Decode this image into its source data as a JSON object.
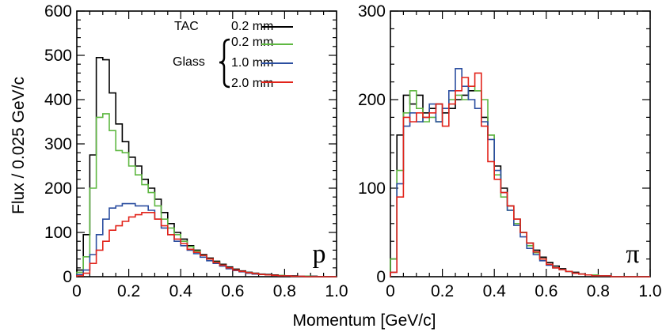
{
  "chart_data": [
    {
      "type": "line",
      "step": true,
      "panel_label": "p",
      "x_edges": [
        0,
        0.025,
        0.05,
        0.075,
        0.1,
        0.125,
        0.15,
        0.175,
        0.2,
        0.225,
        0.25,
        0.275,
        0.3,
        0.325,
        0.35,
        0.375,
        0.4,
        0.425,
        0.45,
        0.475,
        0.5,
        0.525,
        0.55,
        0.575,
        0.6,
        0.625,
        0.65,
        0.675,
        0.7,
        0.725,
        0.75,
        0.775,
        0.8,
        0.825,
        0.85,
        0.875,
        0.9,
        0.925,
        0.95,
        0.975,
        1.0
      ],
      "xlim": [
        0,
        1.0
      ],
      "ylim": [
        0,
        600
      ],
      "xticks": [
        "0",
        "0.2",
        "0.4",
        "0.6",
        "0.8",
        "1.0"
      ],
      "yticks": [
        "0",
        "100",
        "200",
        "300",
        "400",
        "500",
        "600"
      ],
      "ylabel": "Flux / 0.025 GeV/c",
      "series": [
        {
          "name": "TAC 0.2 mm",
          "color": "#000000",
          "values": [
            15,
            95,
            275,
            495,
            490,
            415,
            345,
            305,
            270,
            250,
            220,
            200,
            175,
            145,
            120,
            100,
            85,
            70,
            60,
            50,
            42,
            35,
            28,
            22,
            17,
            13,
            10,
            8,
            6,
            5,
            4,
            3,
            2,
            2,
            1,
            1,
            1,
            0,
            0,
            0
          ]
        },
        {
          "name": "Glass 0.2 mm",
          "color": "#5fb842",
          "values": [
            10,
            45,
            200,
            360,
            368,
            330,
            285,
            280,
            250,
            230,
            208,
            190,
            160,
            130,
            110,
            95,
            80,
            68,
            58,
            48,
            40,
            33,
            26,
            20,
            15,
            12,
            9,
            7,
            5,
            4,
            3,
            3,
            2,
            1,
            1,
            1,
            0,
            0,
            0,
            0
          ]
        },
        {
          "name": "Glass 1.0 mm",
          "color": "#2b4ea0",
          "values": [
            5,
            15,
            50,
            95,
            130,
            155,
            160,
            165,
            165,
            160,
            160,
            150,
            130,
            110,
            95,
            80,
            70,
            60,
            52,
            44,
            36,
            30,
            24,
            18,
            14,
            11,
            8,
            6,
            5,
            4,
            3,
            2,
            2,
            1,
            1,
            0,
            0,
            0,
            0,
            0
          ]
        },
        {
          "name": "Glass 2.0 mm",
          "color": "#e2231a",
          "values": [
            2,
            8,
            30,
            60,
            80,
            105,
            115,
            125,
            135,
            140,
            145,
            145,
            130,
            115,
            95,
            85,
            75,
            62,
            55,
            48,
            40,
            32,
            26,
            20,
            15,
            12,
            9,
            7,
            5,
            4,
            3,
            2,
            2,
            1,
            1,
            0,
            0,
            0,
            0,
            0
          ]
        }
      ]
    },
    {
      "type": "line",
      "step": true,
      "panel_label": "π",
      "x_edges": [
        0,
        0.025,
        0.05,
        0.075,
        0.1,
        0.125,
        0.15,
        0.175,
        0.2,
        0.225,
        0.25,
        0.275,
        0.3,
        0.325,
        0.35,
        0.375,
        0.4,
        0.425,
        0.45,
        0.475,
        0.5,
        0.525,
        0.55,
        0.575,
        0.6,
        0.625,
        0.65,
        0.675,
        0.7,
        0.725,
        0.75,
        0.775,
        0.8,
        0.825,
        0.85,
        0.875,
        0.9,
        0.925,
        0.95,
        0.975,
        1.0
      ],
      "xlim": [
        0,
        1.0
      ],
      "ylim": [
        0,
        300
      ],
      "xticks": [
        "0",
        "0.2",
        "0.4",
        "0.6",
        "0.8",
        "1.0"
      ],
      "yticks": [
        "0",
        "100",
        "200",
        "300"
      ],
      "series": [
        {
          "name": "TAC 0.2 mm",
          "color": "#000000",
          "values": [
            20,
            160,
            205,
            195,
            205,
            185,
            190,
            195,
            185,
            190,
            200,
            205,
            210,
            210,
            180,
            160,
            125,
            100,
            80,
            65,
            50,
            38,
            30,
            22,
            16,
            12,
            9,
            6,
            5,
            3,
            2,
            2,
            1,
            1,
            0,
            0,
            0,
            0,
            0,
            0
          ]
        },
        {
          "name": "Glass 0.2 mm",
          "color": "#5fb842",
          "values": [
            20,
            120,
            185,
            210,
            190,
            175,
            180,
            175,
            190,
            200,
            205,
            200,
            215,
            210,
            200,
            160,
            115,
            90,
            75,
            60,
            50,
            35,
            27,
            20,
            14,
            10,
            8,
            6,
            4,
            3,
            2,
            2,
            1,
            1,
            0,
            0,
            0,
            0,
            0,
            0
          ]
        },
        {
          "name": "Glass 1.0 mm",
          "color": "#2b4ea0",
          "values": [
            5,
            105,
            170,
            185,
            175,
            180,
            195,
            175,
            190,
            210,
            235,
            215,
            200,
            190,
            175,
            155,
            120,
            95,
            75,
            58,
            45,
            32,
            25,
            18,
            13,
            10,
            8,
            6,
            4,
            3,
            2,
            1,
            1,
            1,
            0,
            0,
            0,
            0,
            0,
            0
          ]
        },
        {
          "name": "Glass 2.0 mm",
          "color": "#e2231a",
          "values": [
            5,
            90,
            180,
            175,
            185,
            180,
            185,
            195,
            170,
            195,
            210,
            225,
            215,
            230,
            170,
            130,
            110,
            95,
            80,
            65,
            50,
            38,
            28,
            20,
            14,
            10,
            8,
            6,
            4,
            3,
            2,
            1,
            1,
            1,
            0,
            0,
            0,
            0,
            0,
            0
          ]
        }
      ]
    }
  ],
  "xlabel": "Momentum [GeV/c]",
  "legend": {
    "tac_label": "TAC",
    "tac_thickness": "0.2 mm",
    "glass_label": "Glass",
    "glass_thicknesses": [
      "0.2 mm",
      "1.0 mm",
      "2.0 mm"
    ]
  }
}
